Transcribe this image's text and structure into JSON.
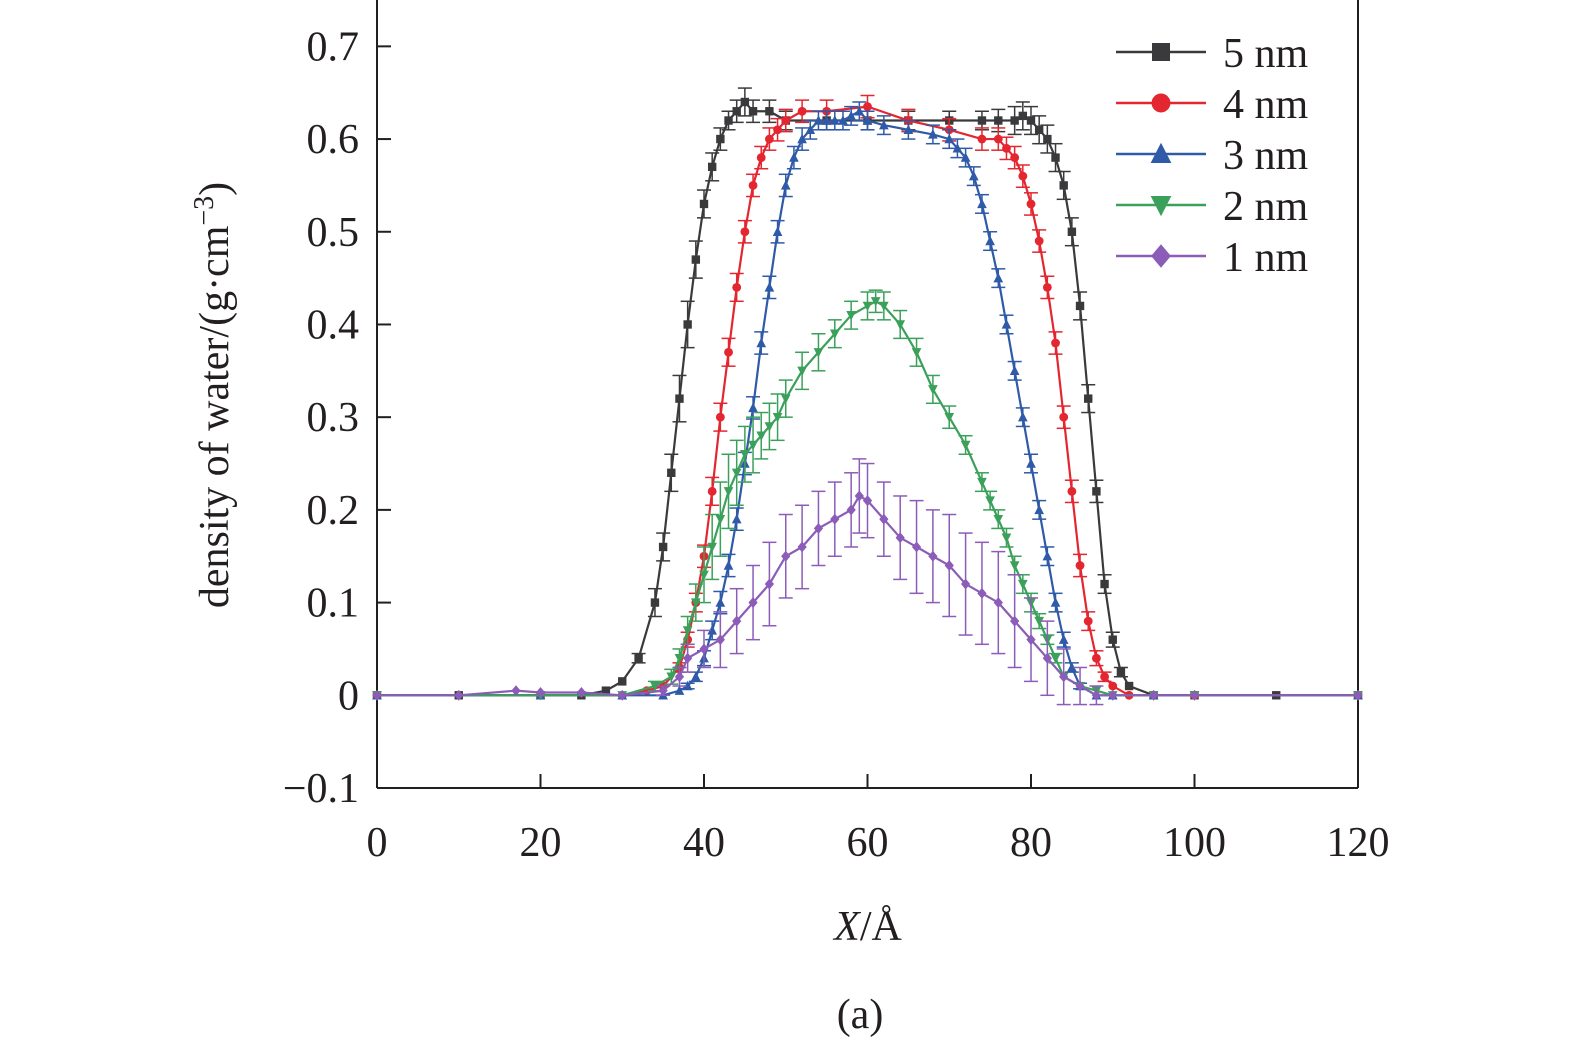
{
  "chart_data": {
    "type": "line",
    "title": "",
    "caption": "(a)",
    "xlabel": {
      "italic": "X",
      "rest": "/Å"
    },
    "ylabel": {
      "main": "density of water/(g·cm",
      "sup": "−3",
      "close": ")"
    },
    "xlim": [
      0,
      120
    ],
    "ylim": [
      -0.1,
      0.75
    ],
    "xticks": [
      0,
      20,
      40,
      60,
      80,
      100,
      120
    ],
    "yticks": [
      -0.1,
      0,
      0.1,
      0.2,
      0.3,
      0.4,
      0.5,
      0.6,
      0.7
    ],
    "ytick_labels": [
      "−0.1",
      "0",
      "0.1",
      "0.2",
      "0.3",
      "0.4",
      "0.5",
      "0.6",
      "0.7"
    ],
    "grid": false,
    "legend_position": "top-right",
    "series": [
      {
        "name": "5 nm",
        "color": "#3a3a3c",
        "marker": "square",
        "x": [
          0,
          10,
          20,
          25,
          28,
          30,
          32,
          34,
          35,
          36,
          37,
          38,
          39,
          40,
          41,
          42,
          43,
          44,
          45,
          46,
          48,
          50,
          55,
          60,
          65,
          70,
          74,
          76,
          78,
          79,
          80,
          81,
          82,
          83,
          84,
          85,
          86,
          87,
          88,
          89,
          90,
          91,
          92,
          95,
          100,
          110,
          120
        ],
        "y": [
          0.0,
          0.0,
          0.0,
          0.0,
          0.005,
          0.015,
          0.04,
          0.1,
          0.16,
          0.24,
          0.32,
          0.4,
          0.47,
          0.53,
          0.57,
          0.6,
          0.62,
          0.63,
          0.64,
          0.63,
          0.63,
          0.62,
          0.62,
          0.62,
          0.62,
          0.62,
          0.62,
          0.62,
          0.62,
          0.625,
          0.62,
          0.61,
          0.6,
          0.58,
          0.55,
          0.5,
          0.42,
          0.32,
          0.22,
          0.12,
          0.06,
          0.025,
          0.01,
          0.0,
          0.0,
          0.0,
          0.0
        ],
        "errors": [
          0,
          0,
          0,
          0,
          0,
          0,
          0.005,
          0.015,
          0.015,
          0.02,
          0.025,
          0.025,
          0.02,
          0.015,
          0.015,
          0.012,
          0.01,
          0.012,
          0.015,
          0.012,
          0.012,
          0.01,
          0.01,
          0.01,
          0.01,
          0.01,
          0.01,
          0.012,
          0.015,
          0.015,
          0.015,
          0.015,
          0.015,
          0.015,
          0.015,
          0.015,
          0.015,
          0.015,
          0.012,
          0.01,
          0.008,
          0.005,
          0,
          0,
          0,
          0,
          0
        ]
      },
      {
        "name": "4 nm",
        "color": "#e3262f",
        "marker": "circle",
        "x": [
          0,
          20,
          30,
          33,
          35,
          37,
          38,
          39,
          40,
          41,
          42,
          43,
          44,
          45,
          46,
          47,
          48,
          49,
          50,
          52,
          55,
          60,
          65,
          70,
          74,
          76,
          77,
          78,
          79,
          80,
          81,
          82,
          83,
          84,
          85,
          86,
          87,
          88,
          89,
          90,
          92,
          95,
          100,
          120
        ],
        "y": [
          0.0,
          0.0,
          0.0,
          0.005,
          0.01,
          0.03,
          0.06,
          0.1,
          0.15,
          0.22,
          0.3,
          0.37,
          0.44,
          0.5,
          0.55,
          0.58,
          0.6,
          0.61,
          0.62,
          0.63,
          0.63,
          0.635,
          0.62,
          0.61,
          0.6,
          0.6,
          0.59,
          0.58,
          0.56,
          0.53,
          0.49,
          0.44,
          0.38,
          0.3,
          0.22,
          0.14,
          0.08,
          0.04,
          0.02,
          0.01,
          0.0,
          0.0,
          0.0,
          0.0
        ],
        "errors": [
          0,
          0,
          0,
          0,
          0,
          0.005,
          0.008,
          0.01,
          0.012,
          0.015,
          0.015,
          0.015,
          0.015,
          0.012,
          0.012,
          0.012,
          0.012,
          0.012,
          0.012,
          0.012,
          0.012,
          0.012,
          0.012,
          0.012,
          0.012,
          0.012,
          0.012,
          0.012,
          0.012,
          0.012,
          0.012,
          0.012,
          0.012,
          0.012,
          0.012,
          0.012,
          0.01,
          0.008,
          0.005,
          0,
          0,
          0,
          0,
          0
        ]
      },
      {
        "name": "3 nm",
        "color": "#2e5aa8",
        "marker": "triangle-up",
        "x": [
          0,
          20,
          30,
          35,
          37,
          38,
          39,
          40,
          41,
          42,
          43,
          44,
          45,
          46,
          47,
          48,
          49,
          50,
          51,
          52,
          53,
          54,
          55,
          56,
          57,
          58,
          59,
          60,
          62,
          65,
          68,
          70,
          71,
          72,
          73,
          74,
          75,
          76,
          77,
          78,
          79,
          80,
          81,
          82,
          83,
          84,
          85,
          86,
          88,
          90,
          95,
          120
        ],
        "y": [
          0.0,
          0.0,
          0.0,
          0.0,
          0.005,
          0.01,
          0.02,
          0.04,
          0.07,
          0.1,
          0.14,
          0.19,
          0.25,
          0.31,
          0.38,
          0.44,
          0.5,
          0.55,
          0.58,
          0.6,
          0.61,
          0.62,
          0.62,
          0.62,
          0.62,
          0.625,
          0.63,
          0.62,
          0.615,
          0.61,
          0.605,
          0.6,
          0.59,
          0.58,
          0.56,
          0.53,
          0.49,
          0.45,
          0.4,
          0.35,
          0.3,
          0.25,
          0.2,
          0.15,
          0.1,
          0.06,
          0.03,
          0.01,
          0.0,
          0.0,
          0.0,
          0.0
        ],
        "errors": [
          0,
          0,
          0,
          0,
          0,
          0.003,
          0.005,
          0.008,
          0.01,
          0.012,
          0.012,
          0.012,
          0.012,
          0.012,
          0.012,
          0.012,
          0.012,
          0.012,
          0.012,
          0.012,
          0.01,
          0.01,
          0.01,
          0.01,
          0.01,
          0.01,
          0.01,
          0.01,
          0.01,
          0.01,
          0.01,
          0.01,
          0.01,
          0.01,
          0.01,
          0.01,
          0.01,
          0.01,
          0.01,
          0.01,
          0.01,
          0.01,
          0.01,
          0.01,
          0.01,
          0.008,
          0.005,
          0.003,
          0,
          0,
          0,
          0
        ]
      },
      {
        "name": "2 nm",
        "color": "#3aa05a",
        "marker": "triangle-down",
        "x": [
          0,
          20,
          30,
          34,
          36,
          37,
          38,
          39,
          40,
          41,
          42,
          43,
          44,
          45,
          46,
          47,
          48,
          49,
          50,
          52,
          54,
          56,
          58,
          60,
          61,
          62,
          64,
          66,
          68,
          70,
          72,
          74,
          75,
          76,
          77,
          78,
          79,
          80,
          81,
          82,
          83,
          84,
          86,
          88,
          90,
          95,
          100,
          120
        ],
        "y": [
          0.0,
          0.0,
          0.0,
          0.01,
          0.02,
          0.04,
          0.07,
          0.1,
          0.13,
          0.16,
          0.19,
          0.22,
          0.24,
          0.26,
          0.27,
          0.28,
          0.29,
          0.3,
          0.32,
          0.35,
          0.37,
          0.39,
          0.41,
          0.42,
          0.425,
          0.42,
          0.4,
          0.37,
          0.33,
          0.3,
          0.27,
          0.23,
          0.21,
          0.19,
          0.17,
          0.14,
          0.12,
          0.1,
          0.08,
          0.06,
          0.04,
          0.02,
          0.01,
          0.005,
          0.0,
          0.0,
          0.0,
          0.0
        ],
        "errors": [
          0,
          0,
          0,
          0.005,
          0.008,
          0.01,
          0.015,
          0.02,
          0.03,
          0.035,
          0.04,
          0.04,
          0.035,
          0.03,
          0.03,
          0.025,
          0.025,
          0.025,
          0.02,
          0.02,
          0.02,
          0.015,
          0.015,
          0.015,
          0.012,
          0.015,
          0.015,
          0.015,
          0.015,
          0.012,
          0.01,
          0.01,
          0.01,
          0.01,
          0.01,
          0.01,
          0.01,
          0.01,
          0.008,
          0.005,
          0.005,
          0,
          0,
          0,
          0,
          0,
          0,
          0
        ]
      },
      {
        "name": "1 nm",
        "color": "#8b5cb8",
        "marker": "diamond",
        "x": [
          0,
          10,
          17,
          20,
          25,
          30,
          35,
          37,
          38,
          40,
          42,
          44,
          46,
          48,
          50,
          52,
          54,
          56,
          58,
          59,
          60,
          62,
          64,
          66,
          68,
          70,
          72,
          74,
          76,
          78,
          80,
          82,
          84,
          86,
          88,
          90,
          95,
          100,
          120
        ],
        "y": [
          0.0,
          0.0,
          0.005,
          0.003,
          0.003,
          0.0,
          0.005,
          0.02,
          0.04,
          0.05,
          0.06,
          0.08,
          0.1,
          0.12,
          0.15,
          0.16,
          0.18,
          0.19,
          0.2,
          0.215,
          0.21,
          0.19,
          0.17,
          0.16,
          0.15,
          0.14,
          0.12,
          0.11,
          0.1,
          0.08,
          0.06,
          0.04,
          0.02,
          0.01,
          0.0,
          0.0,
          0.0,
          0.0,
          0.0
        ],
        "errors": [
          0,
          0,
          0,
          0,
          0,
          0,
          0.005,
          0.01,
          0.015,
          0.02,
          0.03,
          0.035,
          0.04,
          0.045,
          0.045,
          0.045,
          0.04,
          0.04,
          0.04,
          0.04,
          0.04,
          0.04,
          0.045,
          0.05,
          0.05,
          0.055,
          0.055,
          0.055,
          0.055,
          0.05,
          0.045,
          0.04,
          0.03,
          0.02,
          0.01,
          0,
          0,
          0,
          0
        ]
      }
    ]
  }
}
